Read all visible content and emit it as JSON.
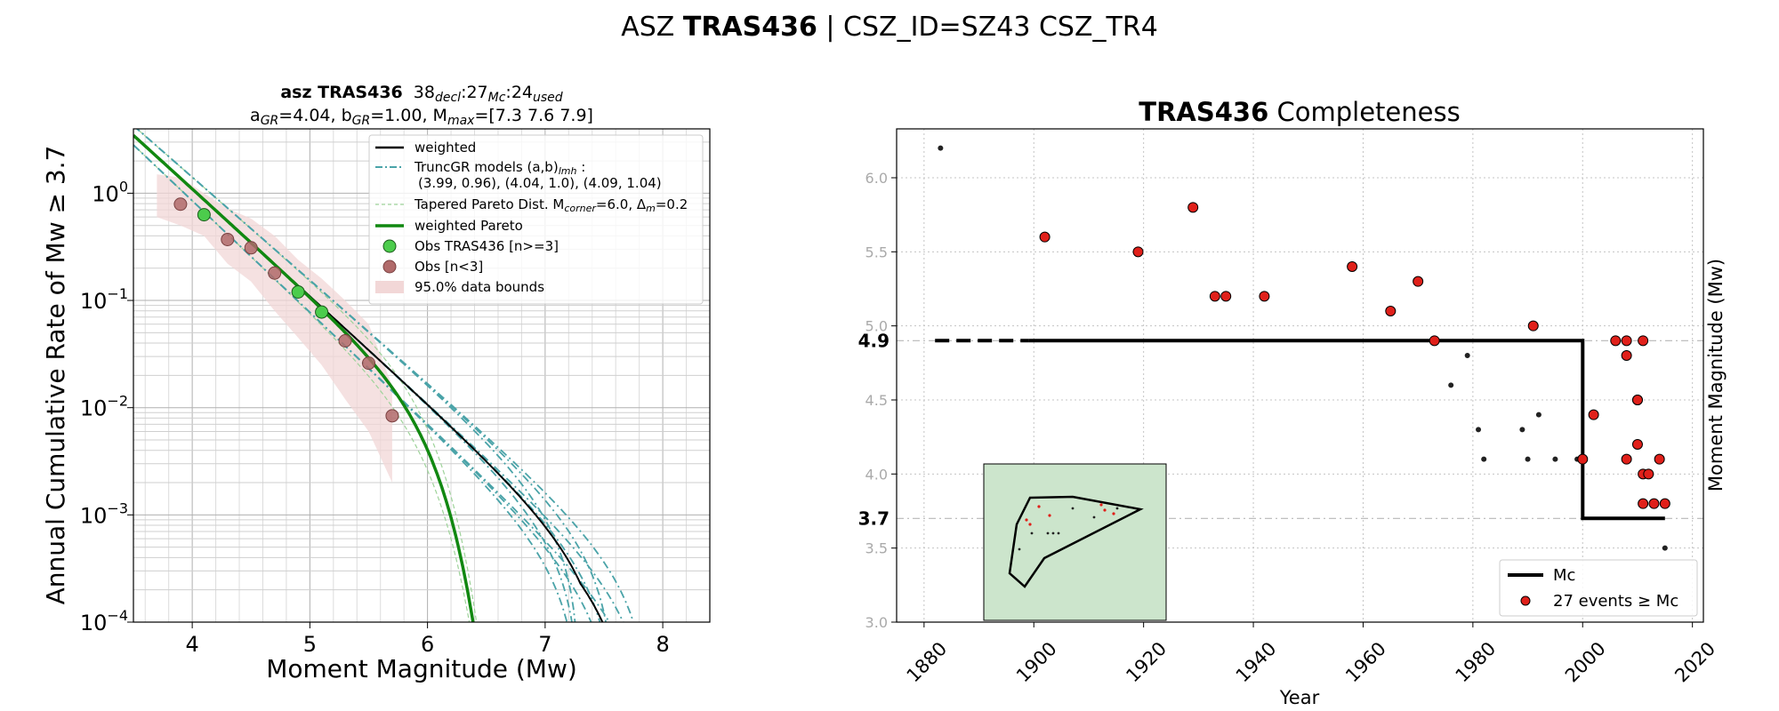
{
  "figure": {
    "title_prefix": "ASZ ",
    "title_bold": "TRAS436",
    "title_suffix": " | CSZ_ID=SZ43 CSZ_TR4"
  },
  "colors": {
    "weighted": "#000000",
    "truncgr": "#4aa3a8",
    "tapered": "#9ed39a",
    "pareto": "#118811",
    "obs_green": "#4ccc4c",
    "obs_brown": "#b06a6a",
    "band": "#f2d7d7",
    "event_red": "#e0201a",
    "map_fill": "#cce5cc"
  },
  "chart_data": [
    {
      "type": "line",
      "title_bold": "asz TRAS436",
      "title_counts": {
        "decl": "38",
        "decl_sub": "decl",
        "mc": ":27",
        "mc_sub": "Mc",
        "used": ":24",
        "used_sub": "used"
      },
      "subtitle": {
        "a_label": "a",
        "a_sub": "GR",
        "a_val": "=4.04,  ",
        "b_label": "b",
        "b_sub": "GR",
        "b_val": "=1.00, ",
        "m_label": "M",
        "m_sub": "max",
        "m_val": "=[7.3 7.6 7.9]"
      },
      "xlabel": "Moment Magnitude (Mw)",
      "ylabel": "Annual Cumulative Rate of Mw  ≥  3.7",
      "xlim": [
        3.5,
        8.4
      ],
      "ylim_log10": [
        -4,
        0.6
      ],
      "xticks": [
        4,
        5,
        6,
        7,
        8
      ],
      "xtick_labels": [
        "4",
        "5",
        "6",
        "7",
        "8"
      ],
      "yticks_exp": [
        -4,
        -3,
        -2,
        -1,
        0
      ],
      "ytick_labels": [
        {
          "base": "10",
          "exp": "−4"
        },
        {
          "base": "10",
          "exp": "−3"
        },
        {
          "base": "10",
          "exp": "−2"
        },
        {
          "base": "10",
          "exp": "−1"
        },
        {
          "base": "10",
          "exp": "0"
        }
      ],
      "grid": true,
      "legend_position": "top-right",
      "legend": [
        {
          "kind": "line",
          "text": "weighted"
        },
        {
          "kind": "dashdot",
          "text": "TruncGR models (a,b)",
          "sub": "lmh",
          "tail": " :"
        },
        {
          "kind": "none",
          "text": "(3.99, 0.96), (4.04, 1.0), (4.09, 1.04)"
        },
        {
          "kind": "dashed",
          "text": "Tapered Pareto Dist. M",
          "sub": "corner",
          "tail": "=6.0, Δ",
          "sub2": "m",
          "tail2": "=0.2"
        },
        {
          "kind": "green",
          "text": "weighted Pareto"
        },
        {
          "kind": "obs_green",
          "text": "Obs TRAS436 [n>=3]"
        },
        {
          "kind": "obs_brown",
          "text": "Obs [n<3]"
        },
        {
          "kind": "band",
          "text": "95.0% data bounds"
        }
      ],
      "models": [
        {
          "a": 3.99,
          "b": 0.96
        },
        {
          "a": 4.04,
          "b": 1.0
        },
        {
          "a": 4.09,
          "b": 1.04
        }
      ],
      "mmax": [
        7.3,
        7.6,
        7.9
      ],
      "m_min": 3.7,
      "pareto_corner": 6.0,
      "obs_green_points": [
        {
          "x": 4.1,
          "y": 0.63
        },
        {
          "x": 4.9,
          "y": 0.12
        },
        {
          "x": 5.1,
          "y": 0.078
        }
      ],
      "obs_brown_points": [
        {
          "x": 3.9,
          "y": 0.79
        },
        {
          "x": 4.3,
          "y": 0.37
        },
        {
          "x": 4.5,
          "y": 0.31
        },
        {
          "x": 4.7,
          "y": 0.18
        },
        {
          "x": 5.3,
          "y": 0.042
        },
        {
          "x": 5.5,
          "y": 0.026
        },
        {
          "x": 5.7,
          "y": 0.0084
        }
      ],
      "band": {
        "x": [
          3.7,
          3.9,
          4.1,
          4.3,
          4.5,
          4.7,
          4.9,
          5.1,
          5.3,
          5.5,
          5.7
        ],
        "upper": [
          1.5,
          1.4,
          1.0,
          0.72,
          0.58,
          0.4,
          0.24,
          0.16,
          0.1,
          0.06,
          0.016
        ],
        "lower": [
          0.6,
          0.5,
          0.4,
          0.22,
          0.15,
          0.08,
          0.045,
          0.025,
          0.012,
          0.006,
          0.002
        ]
      }
    },
    {
      "type": "scatter",
      "title_bold": "TRAS436",
      "title_rest": " Completeness",
      "xlabel": "Year",
      "ylabel": "Moment Magnitude (Mw)",
      "xlim": [
        1875,
        2022
      ],
      "ylim": [
        3.0,
        6.33
      ],
      "xticks": [
        1880,
        1900,
        1920,
        1940,
        1960,
        1980,
        2000,
        2020
      ],
      "xtick_labels": [
        "1880",
        "1900",
        "1920",
        "1940",
        "1960",
        "1980",
        "2000",
        "2020"
      ],
      "yticks": [
        3.0,
        3.5,
        4.0,
        4.5,
        5.0,
        5.5,
        6.0
      ],
      "ytick_labels": [
        "3.0",
        "3.5",
        "4.0",
        "4.5",
        "5.0",
        "5.5",
        "6.0"
      ],
      "mc_labels": [
        {
          "value": 4.9,
          "text": "4.9"
        },
        {
          "value": 3.7,
          "text": "3.7"
        }
      ],
      "mc_steps": {
        "dashed": [
          [
            1882,
            4.9
          ],
          [
            1899,
            4.9
          ]
        ],
        "solid": [
          [
            1899,
            4.9
          ],
          [
            2000,
            4.9
          ],
          [
            2000,
            3.7
          ],
          [
            2015,
            3.7
          ]
        ]
      },
      "grid": true,
      "legend_position": "bottom-right",
      "legend": [
        {
          "kind": "line",
          "text": "Mc"
        },
        {
          "kind": "dot",
          "text": "27 events  ≥  Mc"
        }
      ],
      "events_above_mc": [
        {
          "x": 1902,
          "y": 5.6
        },
        {
          "x": 1919,
          "y": 5.5
        },
        {
          "x": 1929,
          "y": 5.8
        },
        {
          "x": 1933,
          "y": 5.2
        },
        {
          "x": 1935,
          "y": 5.2
        },
        {
          "x": 1942,
          "y": 5.2
        },
        {
          "x": 1958,
          "y": 5.4
        },
        {
          "x": 1965,
          "y": 5.1
        },
        {
          "x": 1970,
          "y": 5.3
        },
        {
          "x": 1973,
          "y": 4.9
        },
        {
          "x": 1991,
          "y": 5.0
        },
        {
          "x": 2000,
          "y": 4.1
        },
        {
          "x": 2002,
          "y": 4.4
        },
        {
          "x": 2006,
          "y": 4.9
        },
        {
          "x": 2008,
          "y": 4.9
        },
        {
          "x": 2008,
          "y": 4.8
        },
        {
          "x": 2010,
          "y": 4.5
        },
        {
          "x": 2010,
          "y": 4.5
        },
        {
          "x": 2010,
          "y": 4.2
        },
        {
          "x": 2011,
          "y": 4.9
        },
        {
          "x": 2008,
          "y": 4.1
        },
        {
          "x": 2011,
          "y": 4.0
        },
        {
          "x": 2012,
          "y": 4.0
        },
        {
          "x": 2014,
          "y": 4.1
        },
        {
          "x": 2011,
          "y": 3.8
        },
        {
          "x": 2013,
          "y": 3.8
        },
        {
          "x": 2015,
          "y": 3.8
        }
      ],
      "events_below_mc": [
        {
          "x": 1883,
          "y": 6.2
        },
        {
          "x": 1976,
          "y": 4.6
        },
        {
          "x": 1979,
          "y": 4.8
        },
        {
          "x": 1981,
          "y": 4.3
        },
        {
          "x": 1982,
          "y": 4.1
        },
        {
          "x": 1989,
          "y": 4.3
        },
        {
          "x": 1990,
          "y": 4.1
        },
        {
          "x": 1992,
          "y": 4.4
        },
        {
          "x": 1995,
          "y": 4.1
        },
        {
          "x": 1999,
          "y": 4.1
        },
        {
          "x": 2015,
          "y": 3.5
        }
      ]
    }
  ]
}
